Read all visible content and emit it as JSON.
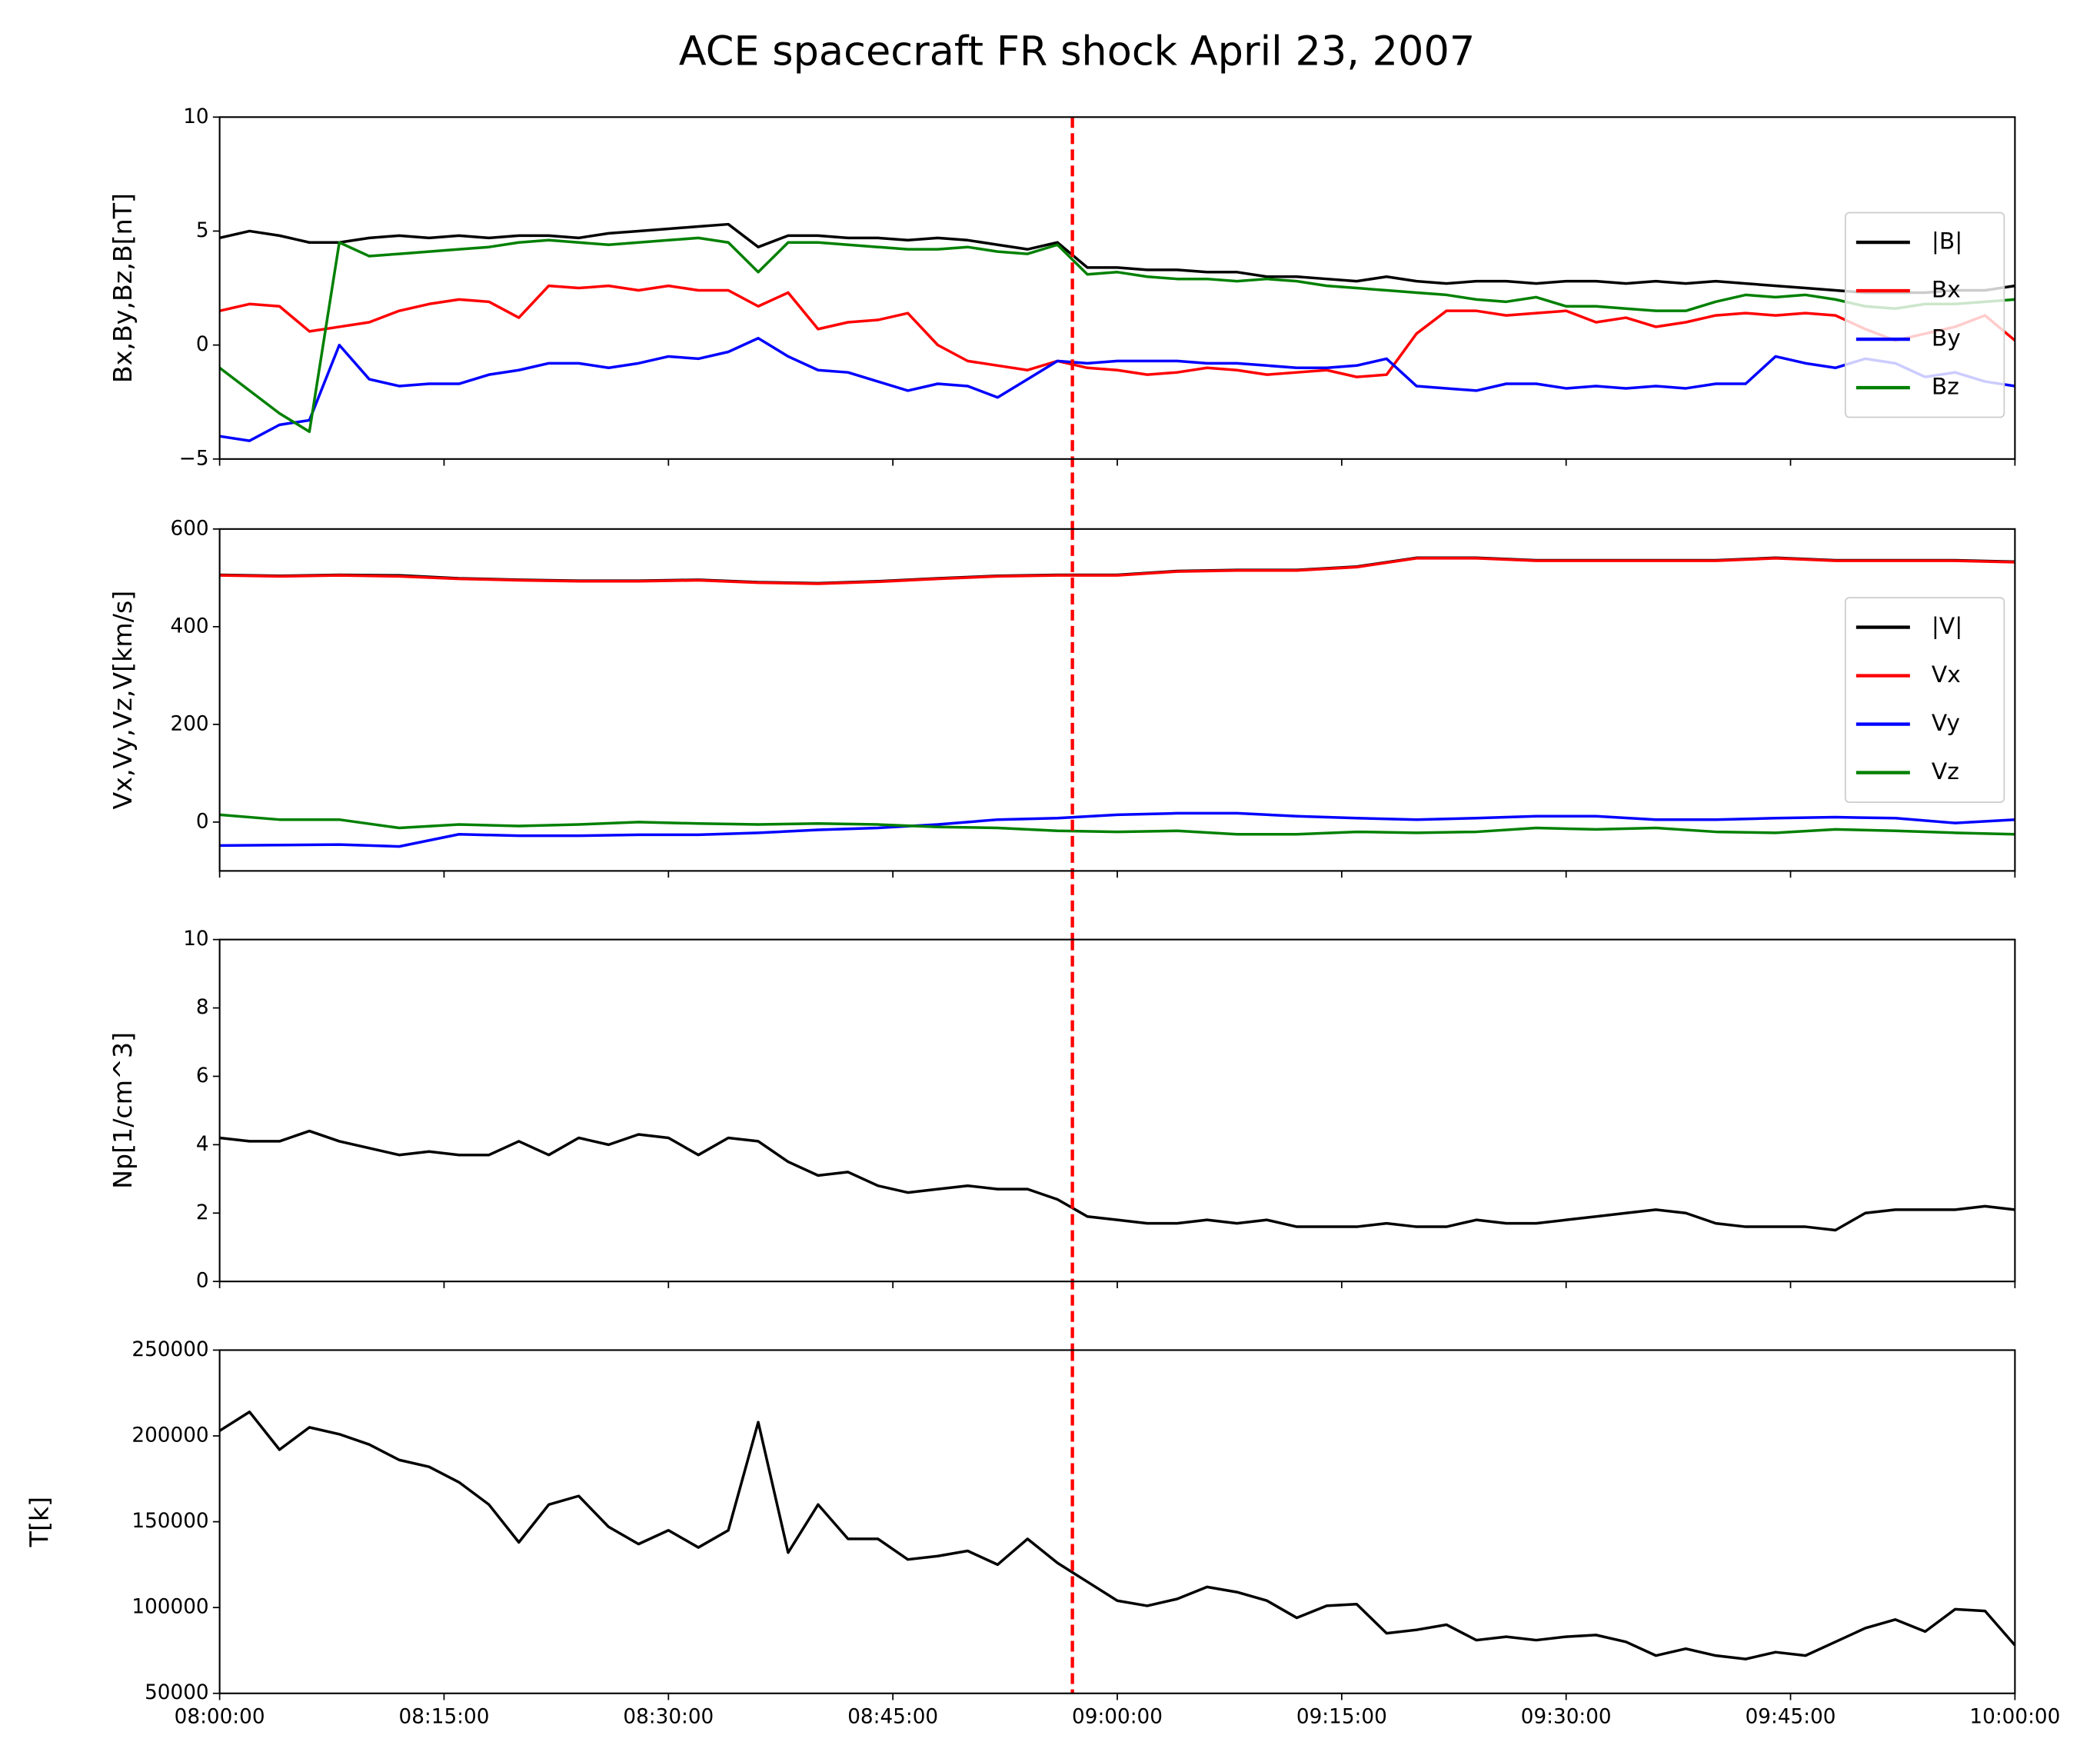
{
  "title": "ACE spacecraft FR shock April 23, 2007",
  "chart_data": [
    {
      "type": "line",
      "ylabel": "Bx,By,Bz,B[nT]",
      "legend": "right",
      "show_xtick_labels": false,
      "xlim": [
        "08:00:00",
        "10:00:00"
      ],
      "xticks": [
        "08:00:00",
        "08:15:00",
        "08:30:00",
        "08:45:00",
        "09:00:00",
        "09:15:00",
        "09:30:00",
        "09:45:00",
        "10:00:00"
      ],
      "ylim": [
        -5,
        10
      ],
      "yticks": [
        {
          "value": -5,
          "label": "−5"
        },
        0,
        5,
        10
      ],
      "vline": {
        "x": "08:57:00",
        "color": "#ff0000"
      },
      "x": [
        "08:00:00",
        "08:02:00",
        "08:04:00",
        "08:06:00",
        "08:08:00",
        "08:10:00",
        "08:12:00",
        "08:14:00",
        "08:16:00",
        "08:18:00",
        "08:20:00",
        "08:22:00",
        "08:24:00",
        "08:26:00",
        "08:28:00",
        "08:30:00",
        "08:32:00",
        "08:34:00",
        "08:36:00",
        "08:38:00",
        "08:40:00",
        "08:42:00",
        "08:44:00",
        "08:46:00",
        "08:48:00",
        "08:50:00",
        "08:52:00",
        "08:54:00",
        "08:56:00",
        "08:58:00",
        "09:00:00",
        "09:02:00",
        "09:04:00",
        "09:06:00",
        "09:08:00",
        "09:10:00",
        "09:12:00",
        "09:14:00",
        "09:16:00",
        "09:18:00",
        "09:20:00",
        "09:22:00",
        "09:24:00",
        "09:26:00",
        "09:28:00",
        "09:30:00",
        "09:32:00",
        "09:34:00",
        "09:36:00",
        "09:38:00",
        "09:40:00",
        "09:42:00",
        "09:44:00",
        "09:46:00",
        "09:48:00",
        "09:50:00",
        "09:52:00",
        "09:54:00",
        "09:56:00",
        "09:58:00",
        "10:00:00"
      ],
      "series": [
        {
          "name": "|B|",
          "color": "#000000",
          "values": [
            4.7,
            5.0,
            4.8,
            4.5,
            4.5,
            4.7,
            4.8,
            4.7,
            4.8,
            4.7,
            4.8,
            4.8,
            4.7,
            4.9,
            5.0,
            5.1,
            5.2,
            5.3,
            4.3,
            4.8,
            4.8,
            4.7,
            4.7,
            4.6,
            4.7,
            4.6,
            4.4,
            4.2,
            4.5,
            3.4,
            3.4,
            3.3,
            3.3,
            3.2,
            3.2,
            3.0,
            3.0,
            2.9,
            2.8,
            3.0,
            2.8,
            2.7,
            2.8,
            2.8,
            2.7,
            2.8,
            2.8,
            2.7,
            2.8,
            2.7,
            2.8,
            2.7,
            2.6,
            2.5,
            2.4,
            2.3,
            2.3,
            2.3,
            2.4,
            2.4,
            2.6
          ]
        },
        {
          "name": "Bx",
          "color": "#ff0000",
          "values": [
            1.5,
            1.8,
            1.7,
            0.6,
            0.8,
            1.0,
            1.5,
            1.8,
            2.0,
            1.9,
            1.2,
            2.6,
            2.5,
            2.6,
            2.4,
            2.6,
            2.4,
            2.4,
            1.7,
            2.3,
            0.7,
            1.0,
            1.1,
            1.4,
            0.0,
            -0.7,
            -0.9,
            -1.1,
            -0.7,
            -1.0,
            -1.1,
            -1.3,
            -1.2,
            -1.0,
            -1.1,
            -1.3,
            -1.2,
            -1.1,
            -1.4,
            -1.3,
            0.5,
            1.5,
            1.5,
            1.3,
            1.4,
            1.5,
            1.0,
            1.2,
            0.8,
            1.0,
            1.3,
            1.4,
            1.3,
            1.4,
            1.3,
            0.7,
            0.2,
            0.5,
            0.8,
            1.3,
            0.2
          ]
        },
        {
          "name": "By",
          "color": "#0000ff",
          "values": [
            -4.0,
            -4.2,
            -3.5,
            -3.3,
            0.0,
            -1.5,
            -1.8,
            -1.7,
            -1.7,
            -1.3,
            -1.1,
            -0.8,
            -0.8,
            -1.0,
            -0.8,
            -0.5,
            -0.6,
            -0.3,
            0.3,
            -0.5,
            -1.1,
            -1.2,
            -1.6,
            -2.0,
            -1.7,
            -1.8,
            -2.3,
            -1.5,
            -0.7,
            -0.8,
            -0.7,
            -0.7,
            -0.7,
            -0.8,
            -0.8,
            -0.9,
            -1.0,
            -1.0,
            -0.9,
            -0.6,
            -1.8,
            -1.9,
            -2.0,
            -1.7,
            -1.7,
            -1.9,
            -1.8,
            -1.9,
            -1.8,
            -1.9,
            -1.7,
            -1.7,
            -0.5,
            -0.8,
            -1.0,
            -0.6,
            -0.8,
            -1.4,
            -1.2,
            -1.6,
            -1.8
          ]
        },
        {
          "name": "Bz",
          "color": "#008000",
          "values": [
            -1.0,
            -2.0,
            -3.0,
            -3.8,
            4.5,
            3.9,
            4.0,
            4.1,
            4.2,
            4.3,
            4.5,
            4.6,
            4.5,
            4.4,
            4.5,
            4.6,
            4.7,
            4.5,
            3.2,
            4.5,
            4.5,
            4.4,
            4.3,
            4.2,
            4.2,
            4.3,
            4.1,
            4.0,
            4.4,
            3.1,
            3.2,
            3.0,
            2.9,
            2.9,
            2.8,
            2.9,
            2.8,
            2.6,
            2.5,
            2.4,
            2.3,
            2.2,
            2.0,
            1.9,
            2.1,
            1.7,
            1.7,
            1.6,
            1.5,
            1.5,
            1.9,
            2.2,
            2.1,
            2.2,
            2.0,
            1.7,
            1.6,
            1.8,
            1.8,
            1.9,
            2.0
          ]
        }
      ]
    },
    {
      "type": "line",
      "ylabel": "Vx,Vy,Vz,V[km/s]",
      "legend": "right",
      "show_xtick_labels": false,
      "xlim": [
        "08:00:00",
        "10:00:00"
      ],
      "xticks": [
        "08:00:00",
        "08:15:00",
        "08:30:00",
        "08:45:00",
        "09:00:00",
        "09:15:00",
        "09:30:00",
        "09:45:00",
        "10:00:00"
      ],
      "ylim": [
        -100,
        600
      ],
      "yticks": [
        0,
        200,
        400,
        600
      ],
      "vline": {
        "x": "08:57:00",
        "color": "#ff0000"
      },
      "x": [
        "08:00:00",
        "08:04:00",
        "08:08:00",
        "08:12:00",
        "08:16:00",
        "08:20:00",
        "08:24:00",
        "08:28:00",
        "08:32:00",
        "08:36:00",
        "08:40:00",
        "08:44:00",
        "08:48:00",
        "08:52:00",
        "08:56:00",
        "09:00:00",
        "09:04:00",
        "09:08:00",
        "09:12:00",
        "09:16:00",
        "09:20:00",
        "09:24:00",
        "09:28:00",
        "09:32:00",
        "09:36:00",
        "09:40:00",
        "09:44:00",
        "09:48:00",
        "09:52:00",
        "09:56:00",
        "10:00:00"
      ],
      "series": [
        {
          "name": "|V|",
          "color": "#000000",
          "values": [
            506,
            504,
            506,
            505,
            499,
            496,
            494,
            494,
            496,
            491,
            489,
            493,
            499,
            504,
            506,
            506,
            514,
            516,
            516,
            523,
            541,
            541,
            536,
            536,
            536,
            536,
            541,
            536,
            536,
            536,
            533
          ]
        },
        {
          "name": "Vx",
          "color": "#ff0000",
          "values": [
            505,
            503,
            505,
            503,
            498,
            495,
            493,
            493,
            495,
            490,
            488,
            492,
            498,
            503,
            505,
            505,
            513,
            515,
            515,
            522,
            540,
            540,
            535,
            535,
            535,
            535,
            540,
            535,
            535,
            535,
            532
          ]
        },
        {
          "name": "Vy",
          "color": "#0000ff",
          "values": [
            -48,
            -47,
            -46,
            -50,
            -25,
            -28,
            -28,
            -26,
            -26,
            -22,
            -16,
            -12,
            -5,
            5,
            8,
            15,
            18,
            18,
            12,
            8,
            5,
            8,
            12,
            12,
            5,
            5,
            8,
            10,
            8,
            -2,
            5
          ]
        },
        {
          "name": "Vz",
          "color": "#008000",
          "values": [
            15,
            5,
            5,
            -12,
            -5,
            -8,
            -5,
            0,
            -3,
            -5,
            -3,
            -5,
            -10,
            -12,
            -18,
            -20,
            -18,
            -25,
            -25,
            -20,
            -22,
            -20,
            -12,
            -15,
            -12,
            -20,
            -22,
            -15,
            -18,
            -22,
            -25
          ]
        }
      ]
    },
    {
      "type": "line",
      "ylabel": "Np[1/cm^3]",
      "show_xtick_labels": false,
      "xlim": [
        "08:00:00",
        "10:00:00"
      ],
      "xticks": [
        "08:00:00",
        "08:15:00",
        "08:30:00",
        "08:45:00",
        "09:00:00",
        "09:15:00",
        "09:30:00",
        "09:45:00",
        "10:00:00"
      ],
      "ylim": [
        0,
        10
      ],
      "yticks": [
        0,
        2,
        4,
        6,
        8,
        10
      ],
      "vline": {
        "x": "08:57:00",
        "color": "#ff0000"
      },
      "x": [
        "08:00:00",
        "08:02:00",
        "08:04:00",
        "08:06:00",
        "08:08:00",
        "08:10:00",
        "08:12:00",
        "08:14:00",
        "08:16:00",
        "08:18:00",
        "08:20:00",
        "08:22:00",
        "08:24:00",
        "08:26:00",
        "08:28:00",
        "08:30:00",
        "08:32:00",
        "08:34:00",
        "08:36:00",
        "08:38:00",
        "08:40:00",
        "08:42:00",
        "08:44:00",
        "08:46:00",
        "08:48:00",
        "08:50:00",
        "08:52:00",
        "08:54:00",
        "08:56:00",
        "08:58:00",
        "09:00:00",
        "09:02:00",
        "09:04:00",
        "09:06:00",
        "09:08:00",
        "09:10:00",
        "09:12:00",
        "09:14:00",
        "09:16:00",
        "09:18:00",
        "09:20:00",
        "09:22:00",
        "09:24:00",
        "09:26:00",
        "09:28:00",
        "09:30:00",
        "09:32:00",
        "09:34:00",
        "09:36:00",
        "09:38:00",
        "09:40:00",
        "09:42:00",
        "09:44:00",
        "09:46:00",
        "09:48:00",
        "09:50:00",
        "09:52:00",
        "09:54:00",
        "09:56:00",
        "09:58:00",
        "10:00:00"
      ],
      "series": [
        {
          "color": "#000000",
          "values": [
            4.2,
            4.1,
            4.1,
            4.4,
            4.1,
            3.9,
            3.7,
            3.8,
            3.7,
            3.7,
            4.1,
            3.7,
            4.2,
            4.0,
            4.3,
            4.2,
            3.7,
            4.2,
            4.1,
            3.5,
            3.1,
            3.2,
            2.8,
            2.6,
            2.7,
            2.8,
            2.7,
            2.7,
            2.4,
            1.9,
            1.8,
            1.7,
            1.7,
            1.8,
            1.7,
            1.8,
            1.6,
            1.6,
            1.6,
            1.7,
            1.6,
            1.6,
            1.8,
            1.7,
            1.7,
            1.8,
            1.9,
            2.0,
            2.1,
            2.0,
            1.7,
            1.6,
            1.6,
            1.6,
            1.5,
            2.0,
            2.1,
            2.1,
            2.1,
            2.2,
            2.1
          ]
        }
      ]
    },
    {
      "type": "line",
      "ylabel": "T[k]",
      "show_xtick_labels": true,
      "xlim": [
        "08:00:00",
        "10:00:00"
      ],
      "xticks": [
        "08:00:00",
        "08:15:00",
        "08:30:00",
        "08:45:00",
        "09:00:00",
        "09:15:00",
        "09:30:00",
        "09:45:00",
        "10:00:00"
      ],
      "ylim": [
        50000,
        250000
      ],
      "yticks": [
        50000,
        100000,
        150000,
        200000,
        250000
      ],
      "vline": {
        "x": "08:57:00",
        "color": "#ff0000"
      },
      "x": [
        "08:00:00",
        "08:02:00",
        "08:04:00",
        "08:06:00",
        "08:08:00",
        "08:10:00",
        "08:12:00",
        "08:14:00",
        "08:16:00",
        "08:18:00",
        "08:20:00",
        "08:22:00",
        "08:24:00",
        "08:26:00",
        "08:28:00",
        "08:30:00",
        "08:32:00",
        "08:34:00",
        "08:36:00",
        "08:38:00",
        "08:40:00",
        "08:42:00",
        "08:44:00",
        "08:46:00",
        "08:48:00",
        "08:50:00",
        "08:52:00",
        "08:54:00",
        "08:56:00",
        "08:58:00",
        "09:00:00",
        "09:02:00",
        "09:04:00",
        "09:06:00",
        "09:08:00",
        "09:10:00",
        "09:12:00",
        "09:14:00",
        "09:16:00",
        "09:18:00",
        "09:20:00",
        "09:22:00",
        "09:24:00",
        "09:26:00",
        "09:28:00",
        "09:30:00",
        "09:32:00",
        "09:34:00",
        "09:36:00",
        "09:38:00",
        "09:40:00",
        "09:42:00",
        "09:44:00",
        "09:46:00",
        "09:48:00",
        "09:50:00",
        "09:52:00",
        "09:54:00",
        "09:56:00",
        "09:58:00",
        "10:00:00"
      ],
      "series": [
        {
          "color": "#000000",
          "values": [
            203000,
            214000,
            192000,
            205000,
            201000,
            195000,
            186000,
            182000,
            173000,
            160000,
            138000,
            160000,
            165000,
            147000,
            137000,
            145000,
            135000,
            145000,
            208000,
            132000,
            160000,
            140000,
            140000,
            128000,
            130000,
            133000,
            125000,
            140000,
            126000,
            115000,
            104000,
            101000,
            105000,
            112000,
            109000,
            104000,
            94000,
            101000,
            102000,
            85000,
            87000,
            90000,
            81000,
            83000,
            81000,
            83000,
            84000,
            80000,
            72000,
            76000,
            72000,
            70000,
            74000,
            72000,
            80000,
            88000,
            93000,
            86000,
            99000,
            98000,
            78000
          ]
        }
      ]
    }
  ]
}
